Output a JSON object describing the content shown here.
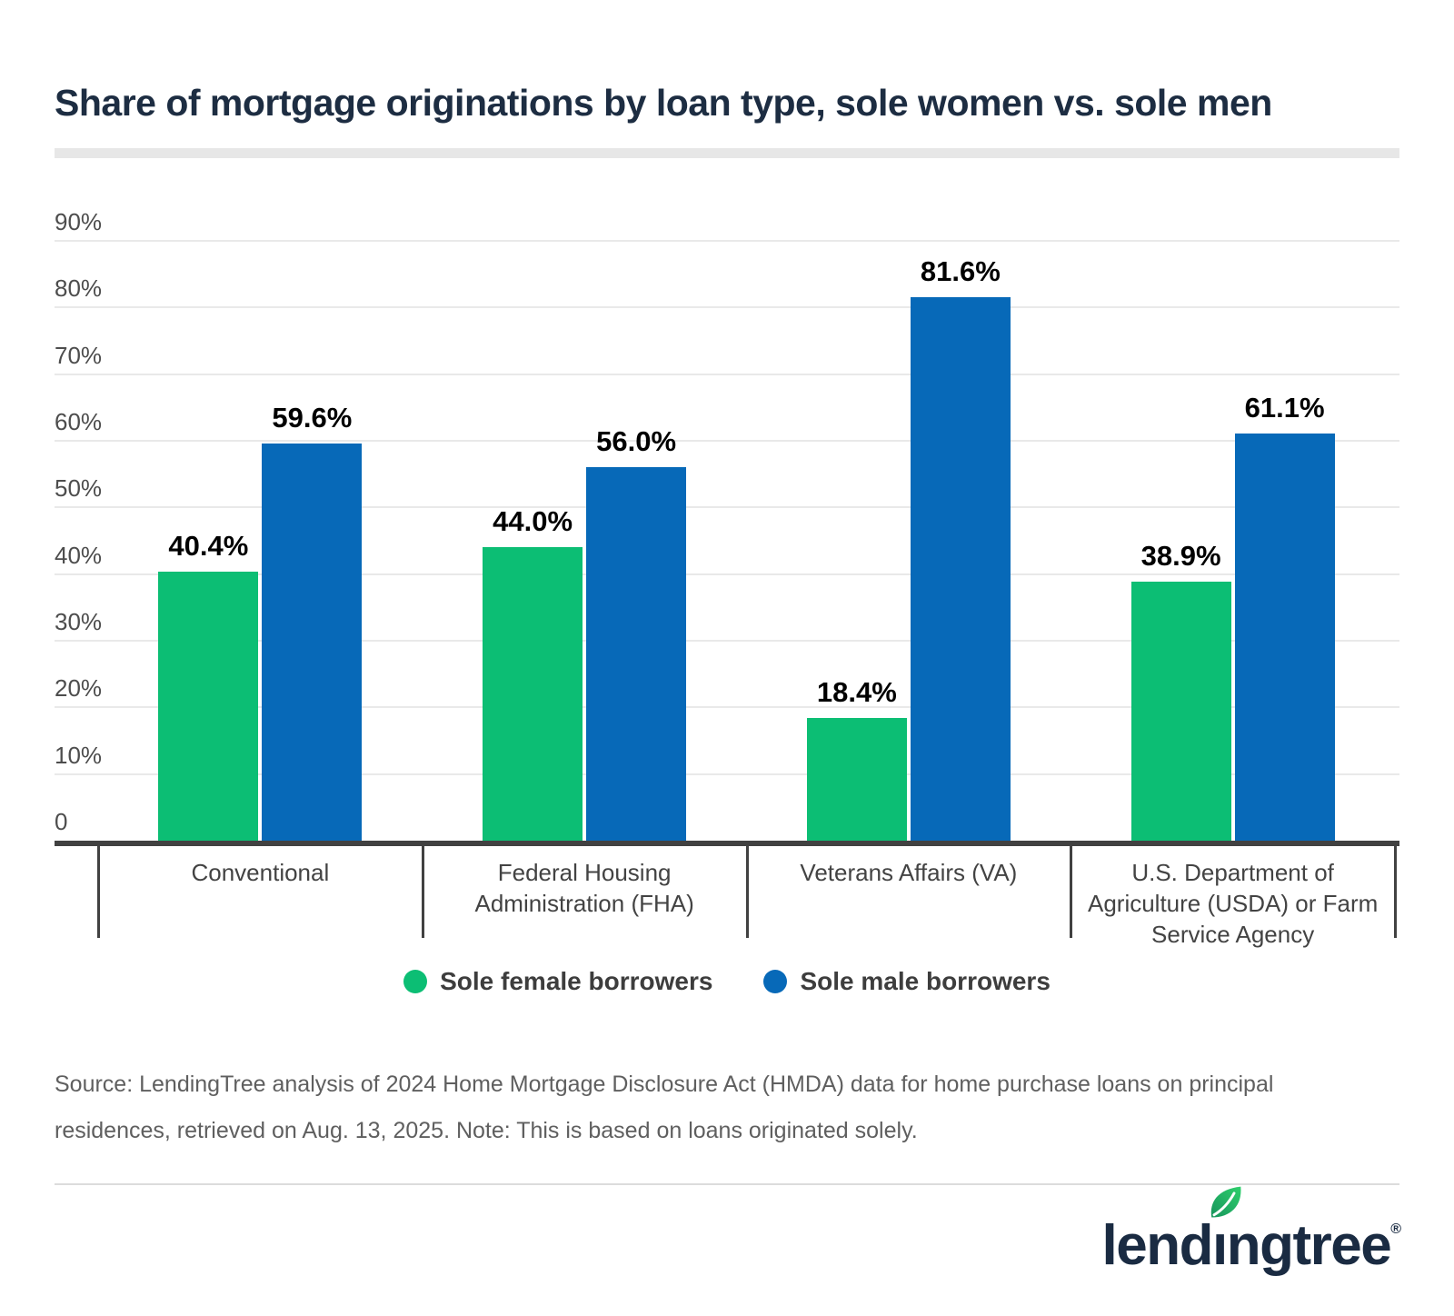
{
  "title": "Share of mortgage originations by loan type, sole women vs. sole men",
  "chart_data": {
    "type": "bar",
    "categories": [
      "Conventional",
      "Federal Housing Administration (FHA)",
      "Veterans Affairs (VA)",
      "U.S. Department of Agriculture (USDA) or Farm Service Agency"
    ],
    "series": [
      {
        "name": "Sole female borrowers",
        "color": "#0cbe74",
        "values": [
          40.4,
          44.0,
          18.4,
          38.9
        ]
      },
      {
        "name": "Sole male borrowers",
        "color": "#0769b8",
        "values": [
          59.6,
          56.0,
          81.6,
          61.1
        ]
      }
    ],
    "value_label_format": "percent_one_decimal",
    "xlabel": "",
    "ylabel": "",
    "ylim": [
      0,
      90
    ],
    "yticks": [
      "0",
      "10%",
      "20%",
      "30%",
      "40%",
      "50%",
      "60%",
      "70%",
      "80%",
      "90%"
    ],
    "grid": true,
    "legend_position": "bottom"
  },
  "colors": {
    "female_green": "#0cbe74",
    "male_blue": "#0769b8",
    "title_navy": "#1d2d42",
    "axis_line": "#414141",
    "gridline": "#e9e9e9",
    "y_label": "#4d4d4d",
    "category_label": "#434343",
    "legend_text": "#3d3d3d",
    "value_label": "#000000",
    "source_text": "#5f5f5f",
    "logo_navy": "#1a2b42",
    "leaf_green": "#2bc263"
  },
  "legend": {
    "items": [
      {
        "label": "Sole female borrowers",
        "color": "#0cbe74"
      },
      {
        "label": "Sole male borrowers",
        "color": "#0769b8"
      }
    ]
  },
  "source_note": {
    "text": "Source: LendingTree analysis of 2024 Home Mortgage Disclosure Act (HMDA) data for home purchase loans on principal residences, retrieved on Aug. 13, 2025. Note: This is based on loans originated solely."
  },
  "logo": {
    "wordmark": "lendingtree",
    "registered": "®",
    "leaf_icon": "leaf-icon"
  }
}
